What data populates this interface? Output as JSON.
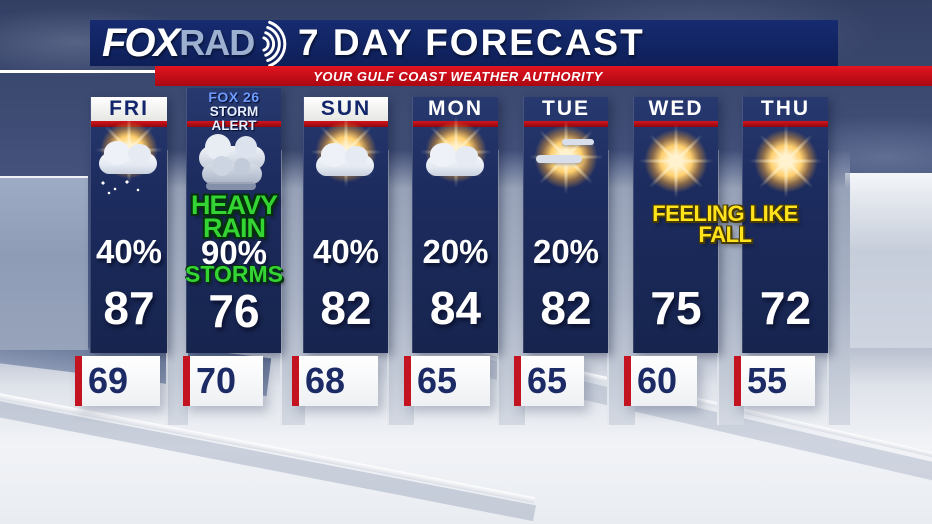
{
  "station": {
    "logo_fox": "FOX",
    "logo_rad": "RAD",
    "radar_icon": "radar-waves-icon"
  },
  "header": {
    "title": "7 DAY FORECAST",
    "banner": "YOUR GULF COAST WEATHER AUTHORITY"
  },
  "forecast": {
    "days": [
      {
        "label": "FRI",
        "header_style": "light",
        "icon": "sun-cloud-rain-icon",
        "precip": "40%",
        "high": "87",
        "low": "69"
      },
      {
        "label_line1": "FOX 26",
        "label_line2": "STORM ALERT",
        "header_style": "alert",
        "icon": "storm-cloud-icon",
        "callout_line1": "HEAVY",
        "callout_line2": "RAIN",
        "precip": "90%",
        "callout_below": "STORMS",
        "high": "76",
        "low": "70"
      },
      {
        "label": "SUN",
        "header_style": "light",
        "icon": "sun-cloud-icon",
        "precip": "40%",
        "high": "82",
        "low": "68"
      },
      {
        "label": "MON",
        "header_style": "dark",
        "icon": "sun-cloud-icon",
        "precip": "20%",
        "high": "84",
        "low": "65"
      },
      {
        "label": "TUE",
        "header_style": "dark",
        "icon": "sun-wisp-icon",
        "precip": "20%",
        "high": "82",
        "low": "65"
      },
      {
        "label": "WED",
        "header_style": "dark",
        "icon": "sunny-icon",
        "high": "75",
        "low": "60"
      },
      {
        "label": "THU",
        "header_style": "dark",
        "icon": "sunny-icon",
        "high": "72",
        "low": "55"
      }
    ],
    "annotation_line1": "FEELING LIKE",
    "annotation_line2": "FALL"
  },
  "colors": {
    "panel_navy": "#1d2c5f",
    "header_navy": "#0e1f58",
    "accent_red": "#c41320",
    "banner_red": "#cf0e1a",
    "alert_green": "#35d435",
    "fall_yellow": "#ffe31c",
    "low_temp_navy": "#1c2b66"
  }
}
